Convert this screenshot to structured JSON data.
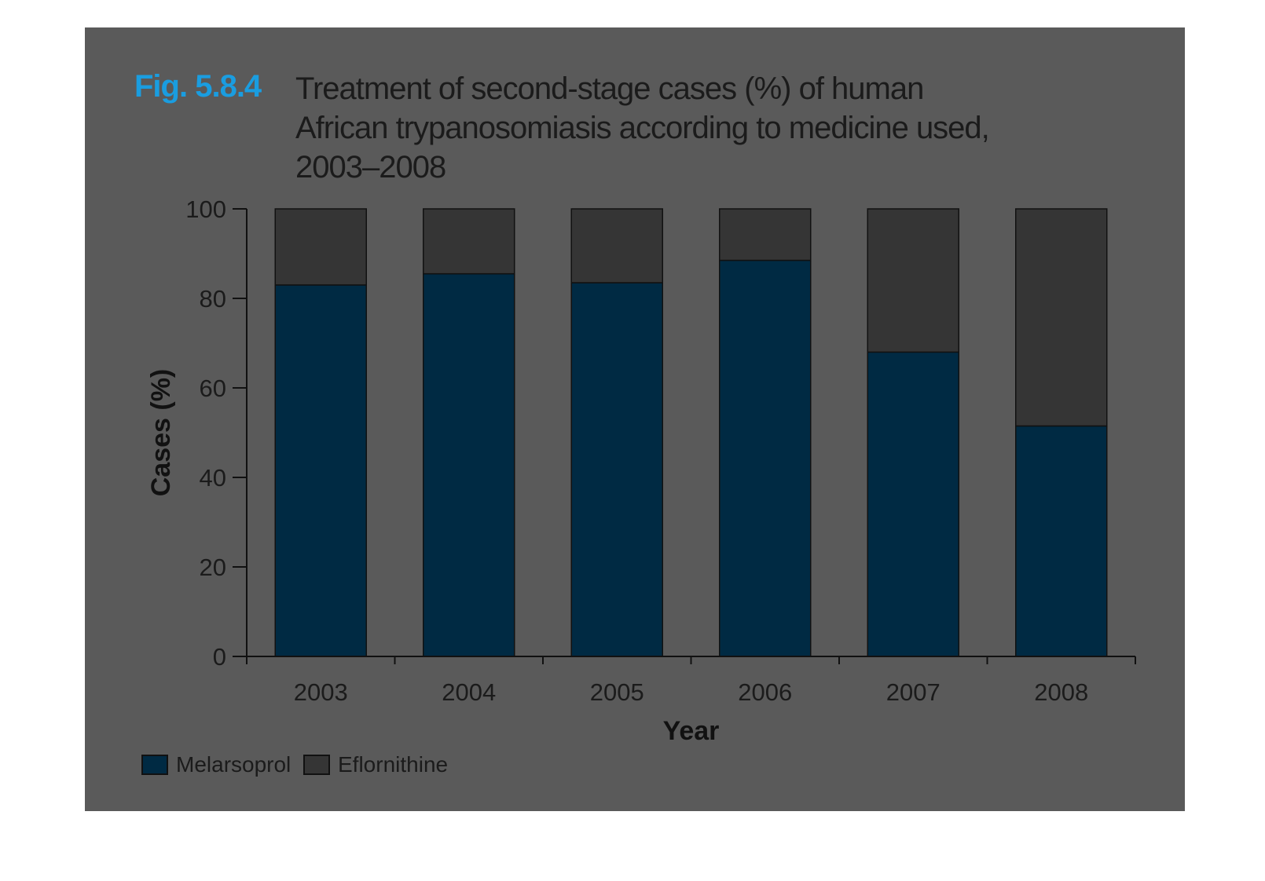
{
  "figure": {
    "label": "Fig. 5.8.4",
    "title_lines": [
      "Treatment of second-stage cases (%) of human",
      "African trypanosomiasis according to medicine used,",
      "2003–2008"
    ]
  },
  "colors": {
    "panel_bg": "#5a5a5a",
    "melarsoprol": "#002a43",
    "eflornithine": "#353535",
    "label_accent": "#1a9de0",
    "text": "#1b1b1b"
  },
  "legend": {
    "melarsoprol": "Melarsoprol",
    "eflornithine": "Eflornithine"
  },
  "chart_data": {
    "type": "bar",
    "stacked": true,
    "title": "Treatment of second-stage cases (%) of human African trypanosomiasis according to medicine used, 2003–2008",
    "xlabel": "Year",
    "ylabel": "Cases (%)",
    "ylim": [
      0,
      100
    ],
    "yticks": [
      0,
      20,
      40,
      60,
      80,
      100
    ],
    "categories": [
      "2003",
      "2004",
      "2005",
      "2006",
      "2007",
      "2008"
    ],
    "series": [
      {
        "name": "Melarsoprol",
        "values": [
          83,
          85.5,
          83.5,
          88.5,
          68,
          51.5
        ]
      },
      {
        "name": "Eflornithine",
        "values": [
          17,
          14.5,
          16.5,
          11.5,
          32,
          48.5
        ]
      }
    ],
    "legend_position": "bottom-left",
    "grid": false
  }
}
